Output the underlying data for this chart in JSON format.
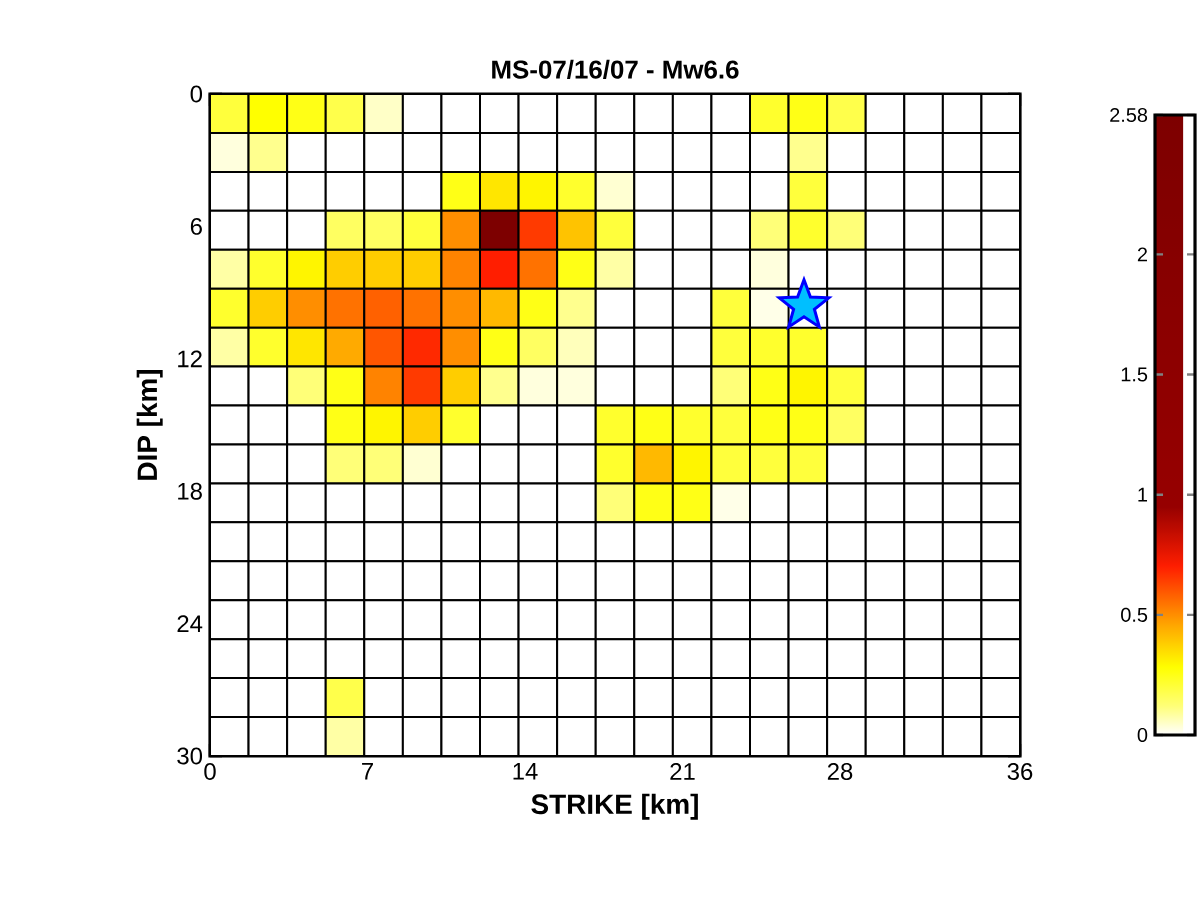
{
  "chart_data": {
    "type": "heatmap",
    "title": "MS-07/16/07 - Mw6.6",
    "xlabel": "STRIKE [km]",
    "ylabel": "DIP [km]",
    "x": [
      0.857,
      2.571,
      4.286,
      6.0,
      7.714,
      9.429,
      11.143,
      12.857,
      14.571,
      16.286,
      18.0,
      19.714,
      21.429,
      23.143,
      24.857,
      26.571,
      28.286,
      30.0,
      31.714,
      33.429,
      35.143
    ],
    "y": [
      0.882,
      2.647,
      4.412,
      6.176,
      7.941,
      9.706,
      11.471,
      13.235,
      15.0,
      16.765,
      18.529,
      20.294,
      22.059,
      23.824,
      25.588,
      27.353,
      29.118
    ],
    "xlim": [
      0,
      36
    ],
    "xticks": [
      0,
      7,
      14,
      21,
      28,
      36
    ],
    "ylim": [
      30,
      0
    ],
    "yticks": [
      0,
      6,
      12,
      18,
      24,
      30
    ],
    "clim": [
      0,
      2.58
    ],
    "cticks": [
      0,
      0.5,
      1,
      1.5,
      2,
      2.58
    ],
    "cells": [
      [
        0.2,
        0.28,
        0.25,
        0.18,
        0.05,
        0,
        0,
        0,
        0,
        0,
        0,
        0,
        0,
        0,
        0.22,
        0.25,
        0.18,
        0,
        0,
        0,
        0
      ],
      [
        0.03,
        0.1,
        0,
        0,
        0,
        0,
        0,
        0,
        0,
        0,
        0,
        0,
        0,
        0,
        0,
        0.1,
        0,
        0,
        0,
        0,
        0
      ],
      [
        0,
        0,
        0,
        0,
        0,
        0,
        0.25,
        0.33,
        0.3,
        0.22,
        0.04,
        0,
        0,
        0,
        0,
        0.2,
        0,
        0,
        0,
        0,
        0
      ],
      [
        0,
        0,
        0,
        0.15,
        0.15,
        0.2,
        0.5,
        2.58,
        0.65,
        0.4,
        0.2,
        0,
        0,
        0,
        0.12,
        0.22,
        0.12,
        0,
        0,
        0,
        0
      ],
      [
        0.08,
        0.22,
        0.3,
        0.38,
        0.38,
        0.38,
        0.52,
        0.7,
        0.55,
        0.25,
        0.08,
        0,
        0,
        0,
        0.03,
        0,
        0,
        0,
        0,
        0,
        0
      ],
      [
        0.22,
        0.38,
        0.5,
        0.55,
        0.58,
        0.55,
        0.5,
        0.42,
        0.25,
        0.1,
        0,
        0,
        0,
        0.2,
        0.02,
        null,
        0,
        0,
        0,
        0,
        0
      ],
      [
        0.08,
        0.22,
        0.33,
        0.45,
        0.6,
        0.68,
        0.5,
        0.25,
        0.15,
        0.06,
        0,
        0,
        0,
        0.2,
        0.22,
        0.22,
        0,
        0,
        0,
        0,
        0
      ],
      [
        0,
        0,
        0.12,
        0.25,
        0.52,
        0.65,
        0.38,
        0.1,
        0.03,
        0.03,
        0,
        0,
        0,
        0.12,
        0.25,
        0.3,
        0.2,
        0,
        0,
        0,
        0
      ],
      [
        0,
        0,
        0,
        0.25,
        0.3,
        0.38,
        0.22,
        0,
        0,
        0,
        0.22,
        0.25,
        0.22,
        0.2,
        0.25,
        0.25,
        0.15,
        0,
        0,
        0,
        0
      ],
      [
        0,
        0,
        0,
        0.12,
        0.12,
        0.04,
        0,
        0,
        0,
        0,
        0.22,
        0.42,
        0.3,
        0.2,
        0.2,
        0.2,
        0,
        0,
        0,
        0,
        0
      ],
      [
        0,
        0,
        0,
        0,
        0,
        0,
        0,
        0,
        0,
        0,
        0.12,
        0.25,
        0.25,
        0.02,
        0,
        0,
        0,
        0,
        0,
        0,
        0
      ],
      [
        0,
        0,
        0,
        0,
        0,
        0,
        0,
        0,
        0,
        0,
        0,
        0,
        0,
        0,
        0,
        0,
        0,
        0,
        0,
        0,
        0
      ],
      [
        0,
        0,
        0,
        0,
        0,
        0,
        0,
        0,
        0,
        0,
        0,
        0,
        0,
        0,
        0,
        0,
        0,
        0,
        0,
        0,
        0
      ],
      [
        0,
        0,
        0,
        0,
        0,
        0,
        0,
        0,
        0,
        0,
        0,
        0,
        0,
        0,
        0,
        0,
        0,
        0,
        0,
        0,
        0
      ],
      [
        0,
        0,
        0,
        0,
        0,
        0,
        0,
        0,
        0,
        0,
        0,
        0,
        0,
        0,
        0,
        0,
        0,
        0,
        0,
        0,
        0
      ],
      [
        0,
        0,
        0,
        0.18,
        0,
        0,
        0,
        0,
        0,
        0,
        0,
        0,
        0,
        0,
        0,
        0,
        0,
        0,
        0,
        0,
        0
      ],
      [
        0,
        0,
        0,
        0.08,
        0,
        0,
        0,
        0,
        0,
        0,
        0,
        0,
        0,
        0,
        0,
        0,
        0,
        0,
        0,
        0,
        0
      ]
    ],
    "marker": "star",
    "series": [
      {
        "type": "scatter",
        "x": [
          26.4
        ],
        "values": [
          9.6
        ],
        "color": "#00bfff"
      }
    ]
  }
}
